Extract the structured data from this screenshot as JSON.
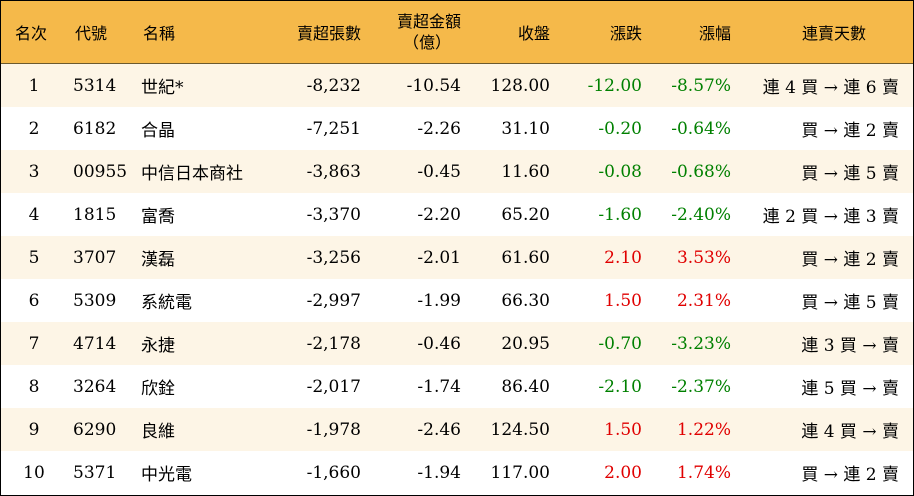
{
  "header": {
    "rank": "名次",
    "code": "代號",
    "name": "名稱",
    "net_sell_lots": "賣超張數",
    "net_sell_amount_l1": "賣超金額",
    "net_sell_amount_l2": "（億）",
    "close": "收盤",
    "change": "漲跌",
    "change_pct": "漲幅",
    "streak": "連賣天數"
  },
  "colors": {
    "header_bg": "#f5b94a",
    "odd_row_bg": "#fdf5e6",
    "up": "#e00000",
    "down": "#008000"
  },
  "rows": [
    {
      "rank": "1",
      "code": "5314",
      "name": "世紀*",
      "lots": "-8,232",
      "amount": "-10.54",
      "close": "128.00",
      "change": "-12.00",
      "pct": "-8.57%",
      "dir": "down",
      "streak": "連 4 買 → 連 6 賣"
    },
    {
      "rank": "2",
      "code": "6182",
      "name": "合晶",
      "lots": "-7,251",
      "amount": "-2.26",
      "close": "31.10",
      "change": "-0.20",
      "pct": "-0.64%",
      "dir": "down",
      "streak": "買 → 連 2 賣"
    },
    {
      "rank": "3",
      "code": "00955",
      "name": "中信日本商社",
      "lots": "-3,863",
      "amount": "-0.45",
      "close": "11.60",
      "change": "-0.08",
      "pct": "-0.68%",
      "dir": "down",
      "streak": "買 → 連 5 賣"
    },
    {
      "rank": "4",
      "code": "1815",
      "name": "富喬",
      "lots": "-3,370",
      "amount": "-2.20",
      "close": "65.20",
      "change": "-1.60",
      "pct": "-2.40%",
      "dir": "down",
      "streak": "連 2 買 → 連 3 賣"
    },
    {
      "rank": "5",
      "code": "3707",
      "name": "漢磊",
      "lots": "-3,256",
      "amount": "-2.01",
      "close": "61.60",
      "change": "2.10",
      "pct": "3.53%",
      "dir": "up",
      "streak": "買 → 連 2 賣"
    },
    {
      "rank": "6",
      "code": "5309",
      "name": "系統電",
      "lots": "-2,997",
      "amount": "-1.99",
      "close": "66.30",
      "change": "1.50",
      "pct": "2.31%",
      "dir": "up",
      "streak": "買 → 連 5 賣"
    },
    {
      "rank": "7",
      "code": "4714",
      "name": "永捷",
      "lots": "-2,178",
      "amount": "-0.46",
      "close": "20.95",
      "change": "-0.70",
      "pct": "-3.23%",
      "dir": "down",
      "streak": "連 3 買 → 賣"
    },
    {
      "rank": "8",
      "code": "3264",
      "name": "欣銓",
      "lots": "-2,017",
      "amount": "-1.74",
      "close": "86.40",
      "change": "-2.10",
      "pct": "-2.37%",
      "dir": "down",
      "streak": "連 5 買 → 賣"
    },
    {
      "rank": "9",
      "code": "6290",
      "name": "良維",
      "lots": "-1,978",
      "amount": "-2.46",
      "close": "124.50",
      "change": "1.50",
      "pct": "1.22%",
      "dir": "up",
      "streak": "連 4 買 → 賣"
    },
    {
      "rank": "10",
      "code": "5371",
      "name": "中光電",
      "lots": "-1,660",
      "amount": "-1.94",
      "close": "117.00",
      "change": "2.00",
      "pct": "1.74%",
      "dir": "up",
      "streak": "買 → 連 2 賣"
    }
  ]
}
